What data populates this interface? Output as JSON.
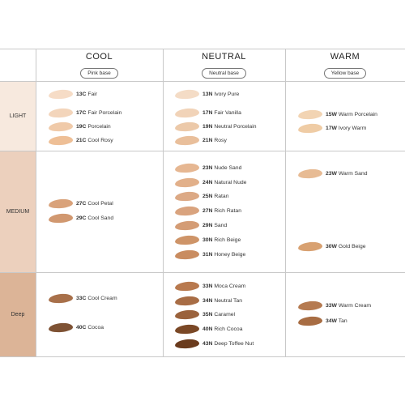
{
  "columns": [
    {
      "name": "COOL",
      "base": "Pink base"
    },
    {
      "name": "NEUTRAL",
      "base": "Neutral base"
    },
    {
      "name": "WARM",
      "base": "Yellow base"
    }
  ],
  "rows": [
    {
      "label": "LIGHT",
      "bg": "#f7e9de"
    },
    {
      "label": "MEDIUM",
      "bg": "#ecd0bd"
    },
    {
      "label": "Deep",
      "bg": "#dcb497"
    }
  ],
  "shades": {
    "light": {
      "cool": [
        {
          "code": "13C",
          "name": "Fair",
          "color": "#f6dcc6"
        },
        {
          "code": "17C",
          "name": "Fair Porcelain",
          "color": "#f3d5bb"
        },
        {
          "code": "19C",
          "name": "Porcelain",
          "color": "#f0caa9"
        },
        {
          "code": "21C",
          "name": "Cool Rosy",
          "color": "#eebf96"
        }
      ],
      "neutral": [
        {
          "code": "13N",
          "name": "Ivory Pure",
          "color": "#f4dcc6"
        },
        {
          "code": "17N",
          "name": "Fair Vanilla",
          "color": "#f1d3b8"
        },
        {
          "code": "19N",
          "name": "Neutral Porcelain",
          "color": "#ecc9a9"
        },
        {
          "code": "21N",
          "name": "Rosy",
          "color": "#e9bf9b"
        }
      ],
      "warm": [
        {
          "code": "15W",
          "name": "Warm Porcelain",
          "color": "#f2d4b3"
        },
        {
          "code": "17W",
          "name": "Ivory Warm",
          "color": "#efcca5"
        }
      ]
    },
    "medium": {
      "cool": [
        {
          "code": "27C",
          "name": "Cool Petal",
          "color": "#d9a27a"
        },
        {
          "code": "29C",
          "name": "Cool Sand",
          "color": "#d19870"
        }
      ],
      "neutral": [
        {
          "code": "23N",
          "name": "Nude Sand",
          "color": "#e6b792"
        },
        {
          "code": "24N",
          "name": "Natural Nude",
          "color": "#e2b08a"
        },
        {
          "code": "25N",
          "name": "Ratan",
          "color": "#dca985"
        },
        {
          "code": "27N",
          "name": "Rich Ratan",
          "color": "#d9a37e"
        },
        {
          "code": "29N",
          "name": "Sand",
          "color": "#d49c75"
        },
        {
          "code": "30N",
          "name": "Rich Beige",
          "color": "#ce9468"
        },
        {
          "code": "31N",
          "name": "Honey Beige",
          "color": "#c98c60"
        }
      ],
      "warm": [
        {
          "code": "23W",
          "name": "Warm Sand",
          "color": "#e7bb94"
        },
        {
          "code": "30W",
          "name": "Gold Beige",
          "color": "#d8a171"
        }
      ]
    },
    "deep": {
      "cool": [
        {
          "code": "33C",
          "name": "Cool Cream",
          "color": "#a8704a"
        },
        {
          "code": "40C",
          "name": "Cocoa",
          "color": "#7e5234"
        }
      ],
      "neutral": [
        {
          "code": "33N",
          "name": "Moca Cream",
          "color": "#b8794e"
        },
        {
          "code": "34N",
          "name": "Neutral Tan",
          "color": "#a86d45"
        },
        {
          "code": "35N",
          "name": "Caramel",
          "color": "#9a623c"
        },
        {
          "code": "40N",
          "name": "Rich Cocoa",
          "color": "#7a4826"
        },
        {
          "code": "43N",
          "name": "Deep Toffee Nut",
          "color": "#6a3b1d"
        }
      ],
      "warm": [
        {
          "code": "33W",
          "name": "Warm Cream",
          "color": "#b57a50"
        },
        {
          "code": "34W",
          "name": "Tan",
          "color": "#a86d43"
        }
      ]
    }
  }
}
